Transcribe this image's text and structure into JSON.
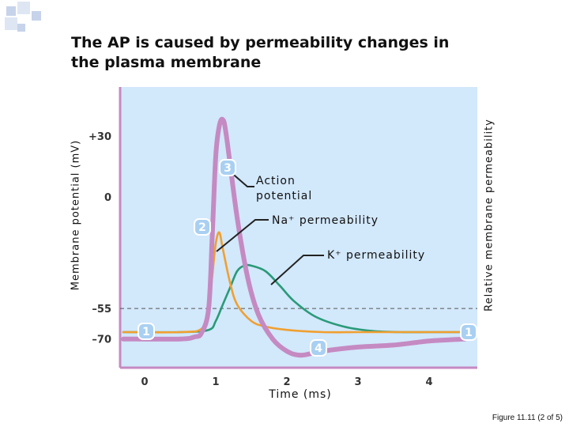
{
  "slide": {
    "title_line1": "The AP is caused by permeability changes in",
    "title_line2": "the plasma membrane",
    "caption": "Figure 11.11 (2 of 5)"
  },
  "chart_data": {
    "type": "line",
    "xlabel": "Time (ms)",
    "ylabel": "Membrane potential (mV)",
    "ylabel_right": "Relative membrane permeability",
    "x_ticks": [
      "0",
      "1",
      "2",
      "3",
      "4"
    ],
    "y_ticks": [
      "+30",
      "0",
      "–55",
      "–70"
    ],
    "xlim": [
      0,
      4.5
    ],
    "ylim": [
      -80,
      45
    ],
    "threshold": -55,
    "series": [
      {
        "name": "Action potential",
        "color": "#c58ac2",
        "x": [
          -0.3,
          0.5,
          0.7,
          0.8,
          0.9,
          0.95,
          1.0,
          1.05,
          1.1,
          1.15,
          1.3,
          1.45,
          1.6,
          1.8,
          2.0,
          2.2,
          2.5,
          3.0,
          3.5,
          4.0,
          4.5
        ],
        "y": [
          -70,
          -70,
          -69,
          -67,
          -55,
          -20,
          20,
          35,
          38,
          30,
          -10,
          -40,
          -58,
          -70,
          -76,
          -78,
          -76,
          -74,
          -73,
          -71,
          -70
        ]
      },
      {
        "name": "Na+ permeability",
        "color": "#f0a030",
        "x": [
          -0.3,
          0.5,
          0.8,
          0.9,
          0.95,
          1.0,
          1.05,
          1.1,
          1.2,
          1.3,
          1.5,
          1.7,
          2.0,
          2.5,
          3.0,
          3.5,
          4.0,
          4.5
        ],
        "y": [
          0,
          0,
          0.03,
          0.2,
          0.5,
          0.8,
          0.9,
          0.75,
          0.45,
          0.25,
          0.1,
          0.05,
          0.02,
          0,
          0,
          0,
          0,
          0
        ]
      },
      {
        "name": "K+ permeability",
        "color": "#2a9a78",
        "x": [
          -0.3,
          0.5,
          0.9,
          1.0,
          1.1,
          1.2,
          1.3,
          1.4,
          1.5,
          1.7,
          1.9,
          2.1,
          2.4,
          2.8,
          3.2,
          3.6,
          4.0,
          4.5
        ],
        "y": [
          0,
          0,
          0.02,
          0.1,
          0.25,
          0.4,
          0.55,
          0.6,
          0.6,
          0.55,
          0.42,
          0.28,
          0.14,
          0.05,
          0.01,
          0,
          0,
          0
        ]
      }
    ],
    "annotations": [
      {
        "label": "Action potential",
        "lines": [
          "Action",
          "potential"
        ]
      },
      {
        "label": "Na+ permeability",
        "lines": [
          "Na⁺ permeability"
        ]
      },
      {
        "label": "K+ permeability",
        "lines": [
          "K⁺ permeability"
        ]
      }
    ],
    "phase_markers": [
      "1",
      "2",
      "3",
      "4",
      "1"
    ],
    "background": "#d2e8fb",
    "axis_color": "#c58ac2",
    "grid": false
  }
}
